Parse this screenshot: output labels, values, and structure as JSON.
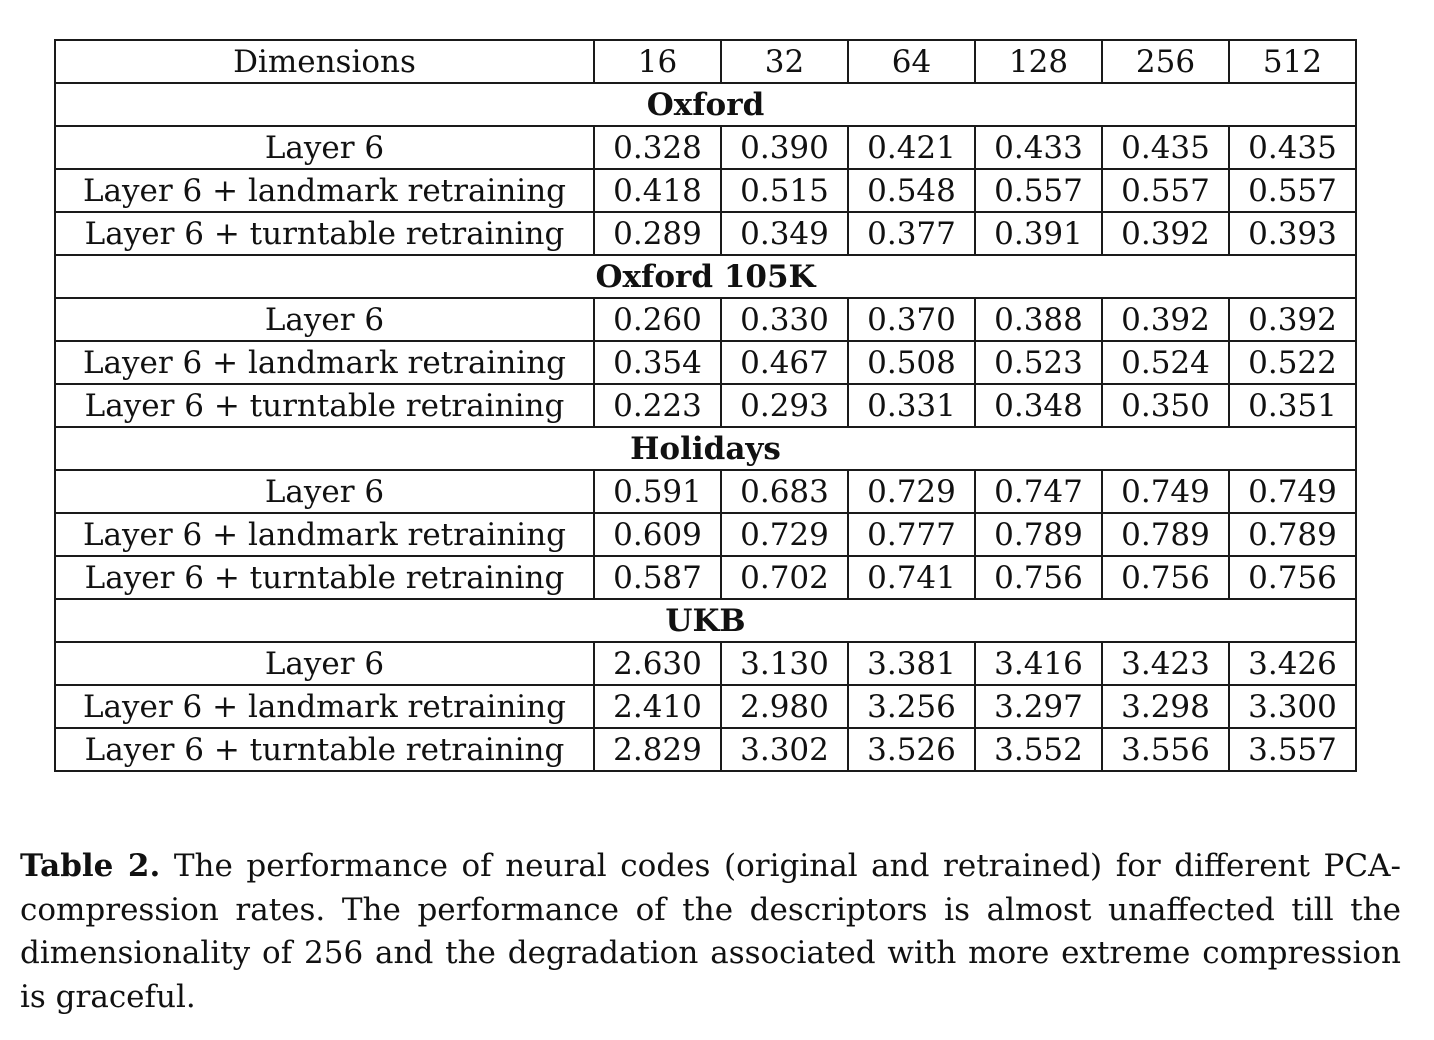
{
  "table": {
    "header": {
      "label": "Dimensions",
      "columns": [
        "16",
        "32",
        "64",
        "128",
        "256",
        "512"
      ]
    },
    "sections": [
      {
        "title": "Oxford",
        "rows": [
          {
            "label": "Layer 6",
            "values": [
              "0.328",
              "0.390",
              "0.421",
              "0.433",
              "0.435",
              "0.435"
            ]
          },
          {
            "label": "Layer 6 + landmark retraining",
            "values": [
              "0.418",
              "0.515",
              "0.548",
              "0.557",
              "0.557",
              "0.557"
            ]
          },
          {
            "label": "Layer 6 + turntable retraining",
            "values": [
              "0.289",
              "0.349",
              "0.377",
              "0.391",
              "0.392",
              "0.393"
            ]
          }
        ]
      },
      {
        "title": "Oxford 105K",
        "rows": [
          {
            "label": "Layer 6",
            "values": [
              "0.260",
              "0.330",
              "0.370",
              "0.388",
              "0.392",
              "0.392"
            ]
          },
          {
            "label": "Layer 6 + landmark retraining",
            "values": [
              "0.354",
              "0.467",
              "0.508",
              "0.523",
              "0.524",
              "0.522"
            ]
          },
          {
            "label": "Layer 6 + turntable retraining",
            "values": [
              "0.223",
              "0.293",
              "0.331",
              "0.348",
              "0.350",
              "0.351"
            ]
          }
        ]
      },
      {
        "title": "Holidays",
        "rows": [
          {
            "label": "Layer 6",
            "values": [
              "0.591",
              "0.683",
              "0.729",
              "0.747",
              "0.749",
              "0.749"
            ]
          },
          {
            "label": "Layer 6 + landmark retraining",
            "values": [
              "0.609",
              "0.729",
              "0.777",
              "0.789",
              "0.789",
              "0.789"
            ]
          },
          {
            "label": "Layer 6 + turntable retraining",
            "values": [
              "0.587",
              "0.702",
              "0.741",
              "0.756",
              "0.756",
              "0.756"
            ]
          }
        ]
      },
      {
        "title": "UKB",
        "rows": [
          {
            "label": "Layer 6",
            "values": [
              "2.630",
              "3.130",
              "3.381",
              "3.416",
              "3.423",
              "3.426"
            ]
          },
          {
            "label": "Layer 6 + landmark retraining",
            "values": [
              "2.410",
              "2.980",
              "3.256",
              "3.297",
              "3.298",
              "3.300"
            ]
          },
          {
            "label": "Layer 6 + turntable retraining",
            "values": [
              "2.829",
              "3.302",
              "3.526",
              "3.552",
              "3.556",
              "3.557"
            ]
          }
        ]
      }
    ]
  },
  "caption": {
    "label": "Table 2.",
    "text": "The performance of neural codes (original and retrained) for different PCA-compression rates. The performance of the descriptors is almost unaffected till the dimensionality of 256 and the degradation associated with more extreme compression is graceful."
  }
}
